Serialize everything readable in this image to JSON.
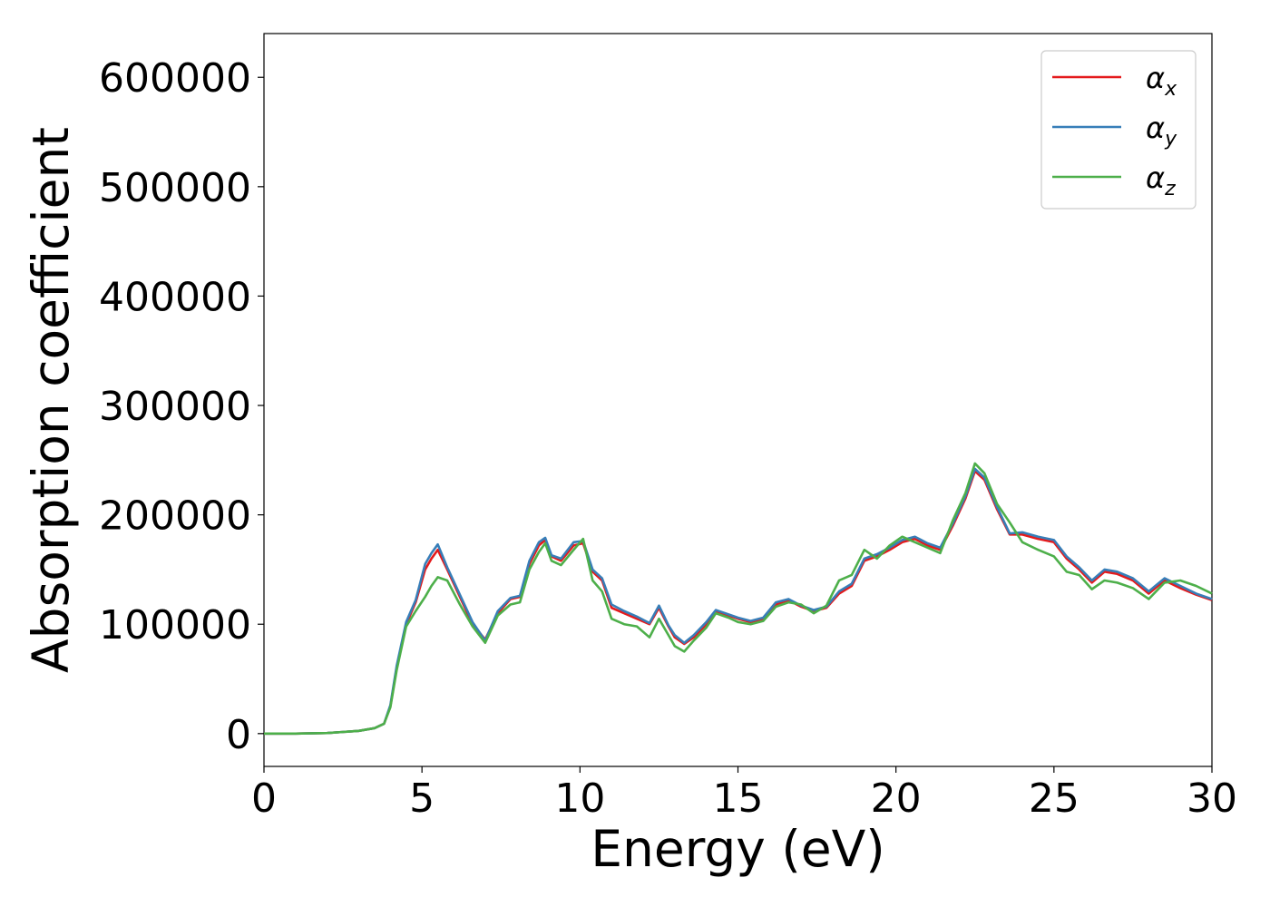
{
  "chart_data": {
    "type": "line",
    "xlabel": "Energy (eV)",
    "ylabel": "Absorption coefficient",
    "xlim": [
      0,
      30
    ],
    "ylim": [
      -30000,
      640000
    ],
    "xticks": [
      0,
      5,
      10,
      15,
      20,
      25,
      30
    ],
    "xtick_labels": [
      "0",
      "5",
      "10",
      "15",
      "20",
      "25",
      "30"
    ],
    "yticks": [
      0,
      100000,
      200000,
      300000,
      400000,
      500000,
      600000
    ],
    "ytick_labels": [
      "0",
      "100000",
      "200000",
      "300000",
      "400000",
      "500000",
      "600000"
    ],
    "grid": false,
    "legend_position": "top-right",
    "series": [
      {
        "name": "αx",
        "legend_base": "α",
        "legend_sub": "x",
        "color": "#e41a1c",
        "x": [
          0,
          1,
          2,
          3,
          3.5,
          3.8,
          4.0,
          4.2,
          4.5,
          4.8,
          5.1,
          5.3,
          5.5,
          5.8,
          6.2,
          6.6,
          7.0,
          7.4,
          7.8,
          8.1,
          8.4,
          8.7,
          8.9,
          9.1,
          9.4,
          9.8,
          10.1,
          10.4,
          10.7,
          11.0,
          11.4,
          11.8,
          12.2,
          12.5,
          12.8,
          13.0,
          13.3,
          13.6,
          14.0,
          14.3,
          14.7,
          15.0,
          15.4,
          15.8,
          16.2,
          16.6,
          17.0,
          17.4,
          17.8,
          18.2,
          18.6,
          19.0,
          19.4,
          19.8,
          20.2,
          20.6,
          21.0,
          21.4,
          21.8,
          22.2,
          22.5,
          22.8,
          23.2,
          23.6,
          24.0,
          24.5,
          25.0,
          25.4,
          25.8,
          26.2,
          26.6,
          27.0,
          27.5,
          28.0,
          28.5,
          29.0,
          29.5,
          30.0
        ],
        "y": [
          0,
          0,
          500,
          2500,
          5000,
          9000,
          25000,
          60000,
          100000,
          120000,
          150000,
          160000,
          168000,
          150000,
          125000,
          100000,
          86000,
          110000,
          123000,
          125000,
          155000,
          172000,
          177000,
          162000,
          158000,
          172000,
          174000,
          148000,
          140000,
          115000,
          110000,
          105000,
          100000,
          115000,
          98000,
          88000,
          82000,
          88000,
          100000,
          112000,
          108000,
          105000,
          102000,
          105000,
          118000,
          122000,
          116000,
          112000,
          115000,
          128000,
          135000,
          158000,
          162000,
          168000,
          175000,
          178000,
          172000,
          168000,
          190000,
          215000,
          240000,
          232000,
          205000,
          182000,
          182000,
          178000,
          175000,
          160000,
          150000,
          138000,
          148000,
          146000,
          140000,
          128000,
          140000,
          133000,
          127000,
          122000
        ]
      },
      {
        "name": "αy",
        "legend_base": "α",
        "legend_sub": "y",
        "color": "#377eb8",
        "x": [
          0,
          1,
          2,
          3,
          3.5,
          3.8,
          4.0,
          4.2,
          4.5,
          4.8,
          5.1,
          5.3,
          5.5,
          5.8,
          6.2,
          6.6,
          7.0,
          7.4,
          7.8,
          8.1,
          8.4,
          8.7,
          8.9,
          9.1,
          9.4,
          9.8,
          10.1,
          10.4,
          10.7,
          11.0,
          11.4,
          11.8,
          12.2,
          12.5,
          12.8,
          13.0,
          13.3,
          13.6,
          14.0,
          14.3,
          14.7,
          15.0,
          15.4,
          15.8,
          16.2,
          16.6,
          17.0,
          17.4,
          17.8,
          18.2,
          18.6,
          19.0,
          19.4,
          19.8,
          20.2,
          20.6,
          21.0,
          21.4,
          21.8,
          22.2,
          22.5,
          22.8,
          23.2,
          23.6,
          24.0,
          24.5,
          25.0,
          25.4,
          25.8,
          26.2,
          26.6,
          27.0,
          27.5,
          28.0,
          28.5,
          29.0,
          29.5,
          30.0
        ],
        "y": [
          0,
          0,
          500,
          2500,
          5000,
          9000,
          26000,
          62000,
          102000,
          122000,
          155000,
          165000,
          173000,
          152000,
          127000,
          102000,
          85000,
          112000,
          124000,
          126000,
          158000,
          175000,
          179000,
          163000,
          160000,
          175000,
          176000,
          150000,
          142000,
          118000,
          112000,
          107000,
          101000,
          117000,
          99000,
          90000,
          83000,
          90000,
          102000,
          113000,
          109000,
          106000,
          103000,
          106000,
          120000,
          123000,
          117000,
          113000,
          116000,
          130000,
          137000,
          160000,
          164000,
          170000,
          177000,
          180000,
          174000,
          170000,
          192000,
          217000,
          242000,
          234000,
          207000,
          183000,
          184000,
          180000,
          177000,
          162000,
          152000,
          140000,
          150000,
          148000,
          142000,
          130000,
          142000,
          135000,
          128000,
          123000
        ]
      },
      {
        "name": "αz",
        "legend_base": "α",
        "legend_sub": "z",
        "color": "#4daf4a",
        "x": [
          0,
          1,
          2,
          3,
          3.5,
          3.8,
          4.0,
          4.2,
          4.5,
          4.8,
          5.1,
          5.3,
          5.5,
          5.8,
          6.2,
          6.6,
          7.0,
          7.4,
          7.8,
          8.1,
          8.4,
          8.7,
          8.9,
          9.1,
          9.4,
          9.8,
          10.1,
          10.4,
          10.7,
          11.0,
          11.4,
          11.8,
          12.2,
          12.5,
          12.8,
          13.0,
          13.3,
          13.6,
          14.0,
          14.3,
          14.7,
          15.0,
          15.4,
          15.8,
          16.2,
          16.6,
          17.0,
          17.4,
          17.8,
          18.2,
          18.6,
          19.0,
          19.4,
          19.8,
          20.2,
          20.6,
          21.0,
          21.4,
          21.8,
          22.2,
          22.5,
          22.8,
          23.2,
          23.6,
          24.0,
          24.5,
          25.0,
          25.4,
          25.8,
          26.2,
          26.6,
          27.0,
          27.5,
          28.0,
          28.5,
          29.0,
          29.5,
          30.0
        ],
        "y": [
          0,
          0,
          500,
          2500,
          5000,
          9000,
          24000,
          58000,
          98000,
          112000,
          125000,
          135000,
          143000,
          140000,
          118000,
          98000,
          83000,
          108000,
          118000,
          120000,
          150000,
          166000,
          174000,
          158000,
          154000,
          168000,
          178000,
          140000,
          130000,
          105000,
          100000,
          98000,
          88000,
          105000,
          90000,
          80000,
          75000,
          85000,
          97000,
          110000,
          106000,
          102000,
          100000,
          103000,
          116000,
          120000,
          118000,
          110000,
          117000,
          140000,
          145000,
          168000,
          160000,
          172000,
          180000,
          175000,
          170000,
          165000,
          195000,
          220000,
          247000,
          238000,
          210000,
          193000,
          175000,
          168000,
          162000,
          148000,
          145000,
          132000,
          140000,
          138000,
          133000,
          123000,
          138000,
          140000,
          135000,
          128000
        ]
      }
    ]
  }
}
